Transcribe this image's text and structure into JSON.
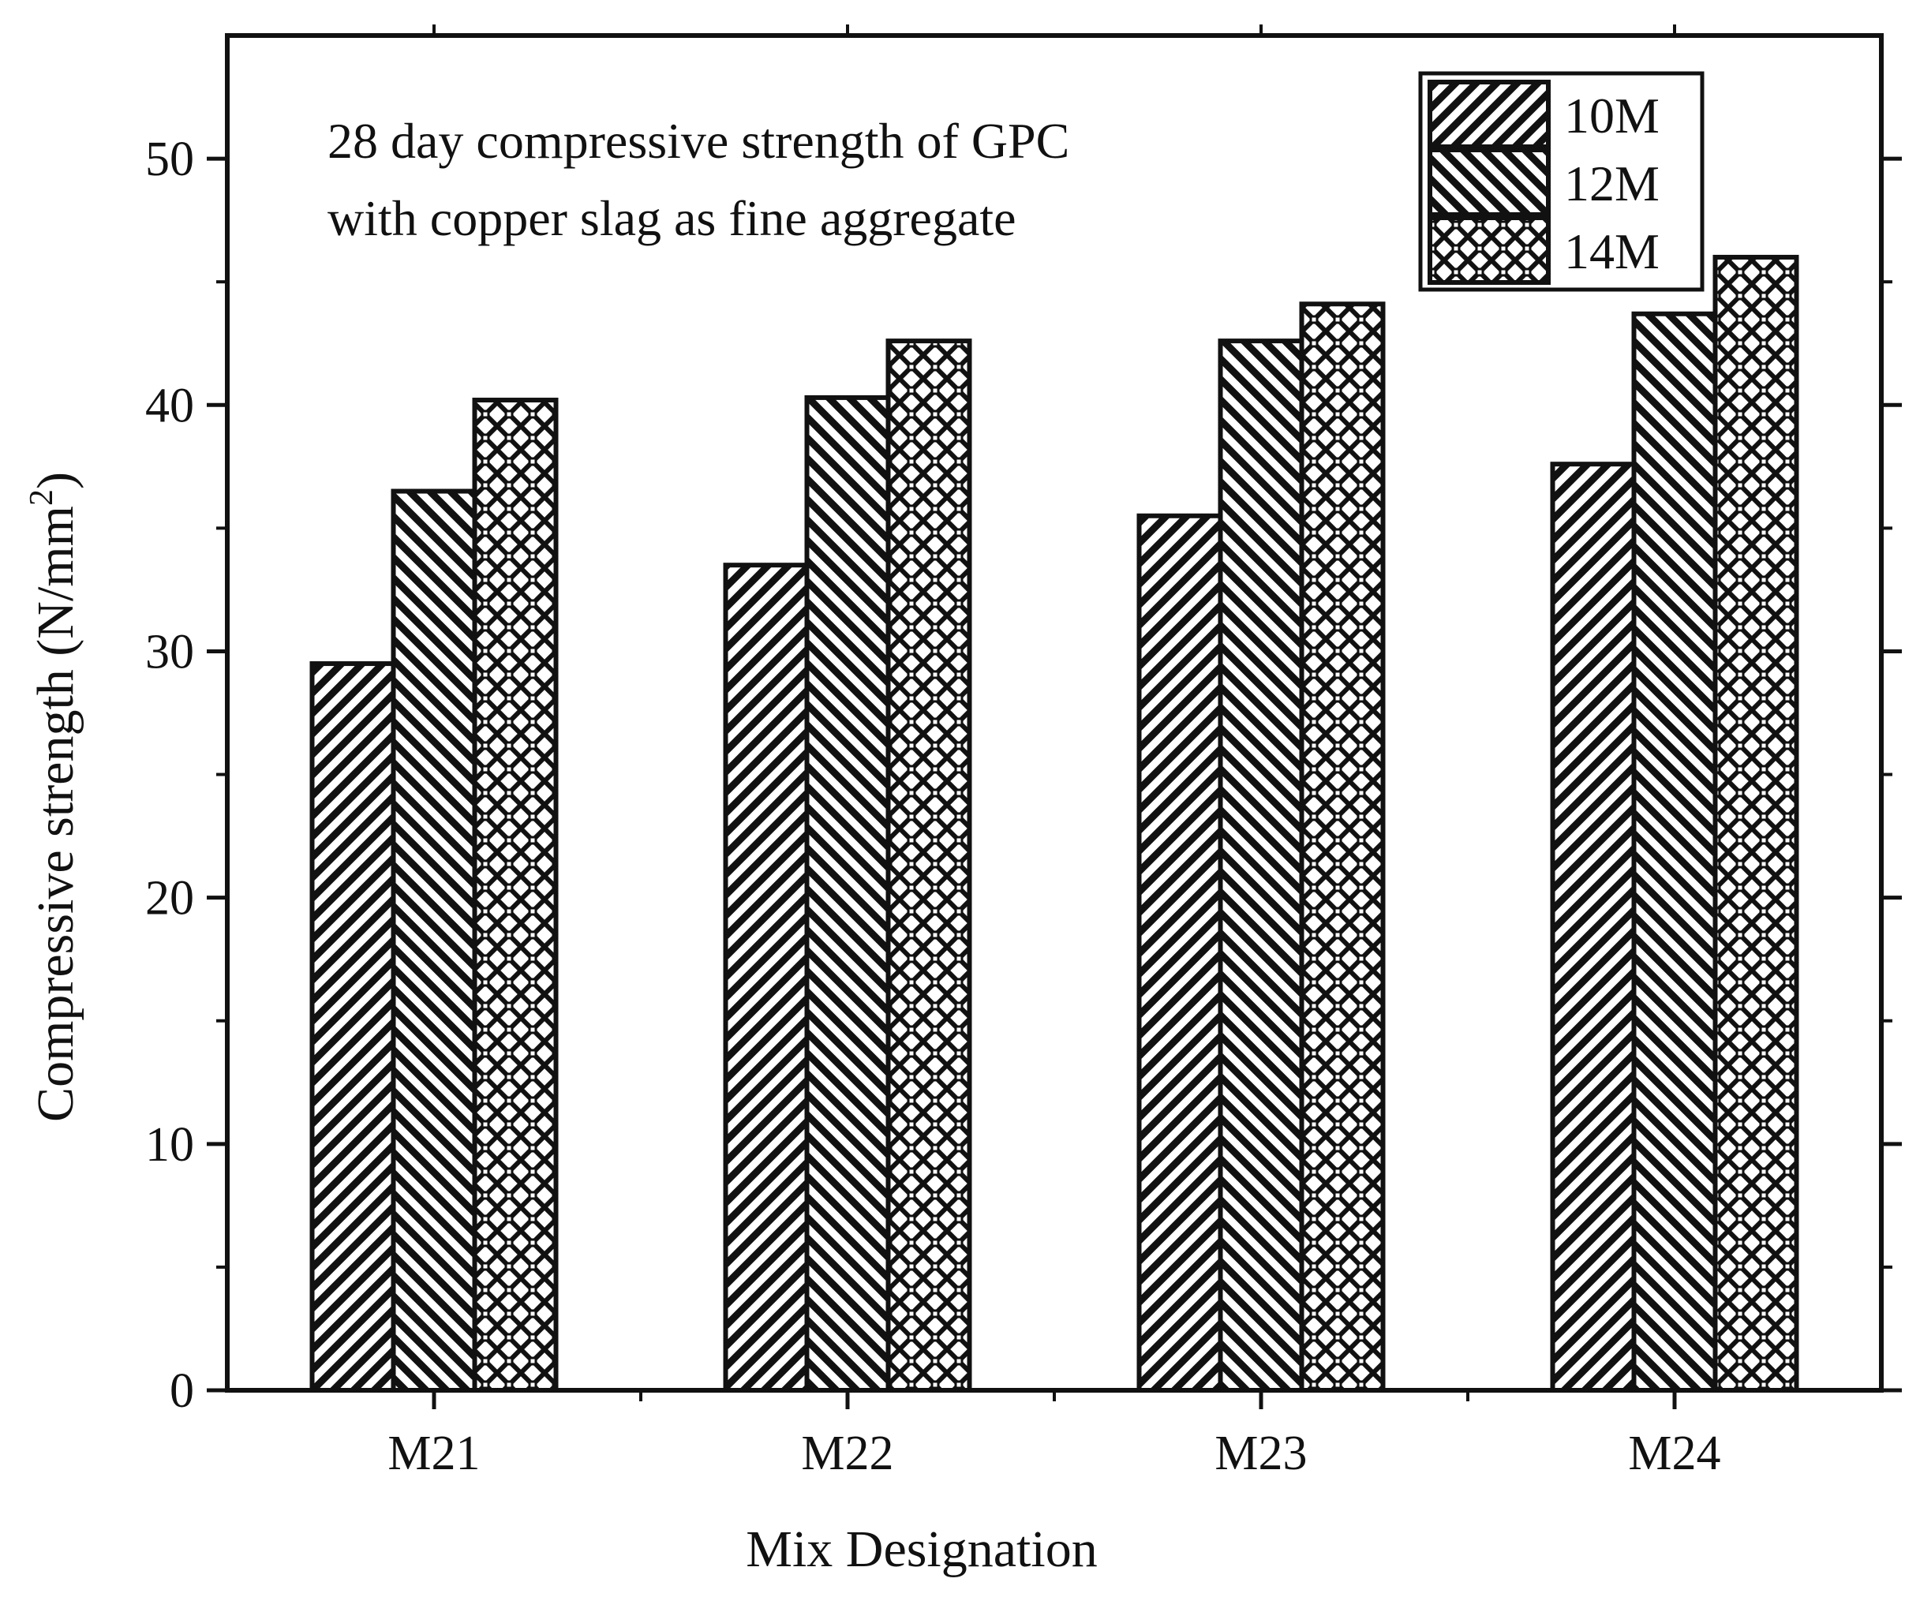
{
  "chart_data": {
    "type": "bar",
    "title": "",
    "annotation_lines": [
      "28 day compressive strength of GPC",
      "with copper slag as fine aggregate"
    ],
    "xlabel": "Mix Designation",
    "ylabel": "Compressive strength (N/mm",
    "ylabel_sup": "2",
    "ylabel_close": ")",
    "categories": [
      "M21",
      "M22",
      "M23",
      "M24"
    ],
    "series": [
      {
        "name": "10M",
        "values": [
          29.5,
          33.5,
          35.5,
          37.6
        ],
        "pattern": "diag-right"
      },
      {
        "name": "12M",
        "values": [
          36.5,
          40.3,
          42.6,
          43.7
        ],
        "pattern": "diag-left"
      },
      {
        "name": "14M",
        "values": [
          40.2,
          42.6,
          44.1,
          46.0
        ],
        "pattern": "cross-hatch"
      }
    ],
    "ylim": [
      0,
      55
    ],
    "yticks": [
      0,
      10,
      20,
      30,
      40,
      50
    ],
    "ytick_labels": [
      "0",
      "10",
      "20",
      "30",
      "40",
      "50"
    ],
    "grid": false,
    "legend_position": "top-right",
    "colors": {
      "ink": "#111111",
      "background": "#ffffff"
    }
  }
}
